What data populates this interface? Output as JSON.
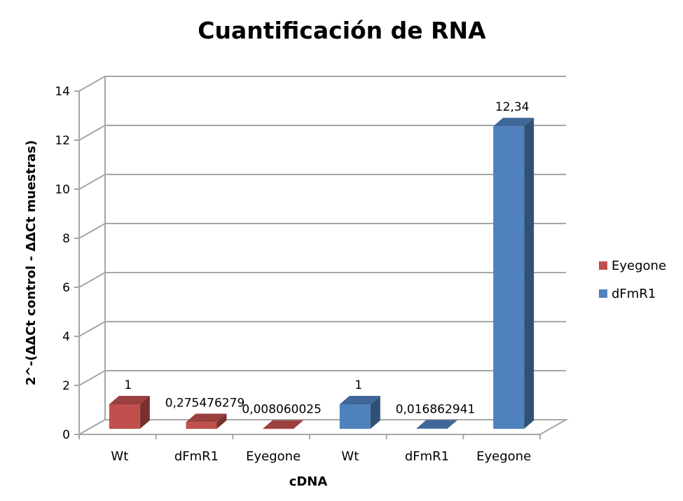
{
  "chart_data": {
    "type": "bar",
    "title": "Cuantificación de RNA",
    "xlabel": "cDNA",
    "ylabel": "2^-(ΔΔCt control - ΔΔCt muestras)",
    "ylim": [
      0,
      14
    ],
    "y_ticks": [
      0,
      2,
      4,
      6,
      8,
      10,
      12,
      14
    ],
    "grid": true,
    "legend_position": "right",
    "bars": [
      {
        "category": "Wt",
        "series": "Eyegone",
        "value": 1,
        "label": "1"
      },
      {
        "category": "dFmR1",
        "series": "Eyegone",
        "value": 0.275476279,
        "label": "0,275476279"
      },
      {
        "category": "Eyegone",
        "series": "Eyegone",
        "value": 0.008060025,
        "label": "0,008060025"
      },
      {
        "category": "Wt",
        "series": "dFmR1",
        "value": 1,
        "label": "1"
      },
      {
        "category": "dFmR1",
        "series": "dFmR1",
        "value": 0.016862941,
        "label": "0,016862941"
      },
      {
        "category": "Eyegone",
        "series": "dFmR1",
        "value": 12.34,
        "label": "12,34"
      }
    ],
    "series": [
      {
        "name": "Eyegone",
        "color": "#c0504d"
      },
      {
        "name": "dFmR1",
        "color": "#4f81bd"
      }
    ]
  }
}
